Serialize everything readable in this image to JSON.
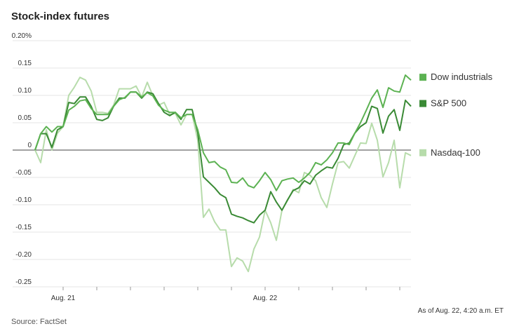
{
  "chart_data": {
    "type": "line",
    "title": "Stock-index futures",
    "x": [
      0,
      1,
      2,
      3,
      4,
      5,
      6,
      7,
      8,
      9,
      10,
      11,
      12,
      13,
      14,
      15,
      16,
      17,
      18,
      19,
      20,
      21,
      22,
      23,
      24,
      25,
      26,
      27,
      28,
      29,
      30,
      31,
      32,
      33,
      34,
      35,
      36,
      37,
      38,
      39,
      40,
      41,
      42,
      43,
      44,
      45,
      46,
      47,
      48,
      49,
      50,
      51,
      52,
      53,
      54,
      55,
      56,
      57,
      58,
      59,
      60,
      61,
      62,
      63,
      64,
      65,
      66,
      67
    ],
    "series": [
      {
        "name": "Dow industrials",
        "color": "#5cb252",
        "values": [
          0,
          0.03,
          0.043,
          0.033,
          0.043,
          0.043,
          0.073,
          0.08,
          0.09,
          0.092,
          0.076,
          0.065,
          0.065,
          0.065,
          0.08,
          0.092,
          0.096,
          0.106,
          0.106,
          0.097,
          0.105,
          0.099,
          0.082,
          0.073,
          0.069,
          0.069,
          0.059,
          0.065,
          0.065,
          0.037,
          -0.005,
          -0.023,
          -0.021,
          -0.031,
          -0.036,
          -0.059,
          -0.06,
          -0.051,
          -0.065,
          -0.069,
          -0.056,
          -0.041,
          -0.054,
          -0.074,
          -0.056,
          -0.053,
          -0.051,
          -0.059,
          -0.051,
          -0.041,
          -0.023,
          -0.027,
          -0.018,
          -0.005,
          0.013,
          0.013,
          0.01,
          0.031,
          0.05,
          0.072,
          0.095,
          0.11,
          0.078,
          0.114,
          0.108,
          0.106,
          0.137,
          0.128
        ]
      },
      {
        "name": "S&P 500",
        "color": "#3a8a35",
        "values": [
          0,
          0.03,
          0.03,
          0.005,
          0.037,
          0.043,
          0.087,
          0.085,
          0.097,
          0.097,
          0.08,
          0.056,
          0.054,
          0.059,
          0.08,
          0.095,
          0.095,
          0.106,
          0.106,
          0.095,
          0.106,
          0.103,
          0.085,
          0.069,
          0.063,
          0.069,
          0.056,
          0.074,
          0.074,
          0.031,
          -0.049,
          -0.059,
          -0.069,
          -0.081,
          -0.087,
          -0.117,
          -0.121,
          -0.124,
          -0.129,
          -0.133,
          -0.119,
          -0.11,
          -0.076,
          -0.095,
          -0.11,
          -0.091,
          -0.074,
          -0.069,
          -0.056,
          -0.062,
          -0.046,
          -0.038,
          -0.031,
          -0.033,
          -0.015,
          0.01,
          0.013,
          0.031,
          0.043,
          0.05,
          0.08,
          0.076,
          0.031,
          0.062,
          0.074,
          0.036,
          0.091,
          0.08
        ]
      },
      {
        "name": "Nasdaq-100",
        "color": "#b7dcab",
        "values": [
          0,
          -0.023,
          0.037,
          0,
          0.031,
          0.043,
          0.1,
          0.115,
          0.133,
          0.128,
          0.108,
          0.069,
          0.069,
          0.067,
          0.082,
          0.112,
          0.112,
          0.112,
          0.117,
          0.097,
          0.124,
          0.099,
          0.082,
          0.087,
          0.065,
          0.067,
          0.046,
          0.065,
          0.065,
          0.018,
          -0.123,
          -0.108,
          -0.131,
          -0.146,
          -0.146,
          -0.213,
          -0.197,
          -0.203,
          -0.222,
          -0.181,
          -0.159,
          -0.11,
          -0.133,
          -0.165,
          -0.11,
          -0.092,
          -0.072,
          -0.078,
          -0.041,
          -0.046,
          -0.056,
          -0.087,
          -0.105,
          -0.062,
          -0.023,
          -0.021,
          -0.033,
          -0.01,
          0.013,
          0.012,
          0.049,
          0.018,
          -0.049,
          -0.023,
          0.018,
          -0.069,
          -0.005,
          -0.01
        ]
      }
    ],
    "xlim": [
      0,
      67
    ],
    "xticks": [
      {
        "value": 5,
        "label": "Aug. 21"
      },
      {
        "value": 41,
        "label": "Aug. 22"
      }
    ],
    "minor_xticks": [
      11,
      17,
      23,
      29,
      35,
      47,
      53,
      59,
      65
    ],
    "ylim": [
      -0.25,
      0.2
    ],
    "yticks": [
      {
        "value": 0.2,
        "label": "0.20%"
      },
      0.15,
      {
        "value": 0.1,
        "label": "0.10"
      },
      0.05,
      0,
      -0.05,
      {
        "value": -0.1,
        "label": "-0.10"
      },
      -0.15,
      {
        "value": -0.2,
        "label": "-0.20"
      },
      -0.25
    ],
    "grid": true,
    "legend": "right",
    "note": "As of Aug. 22, 4:20 a.m. ET",
    "source": "Source: FactSet"
  }
}
